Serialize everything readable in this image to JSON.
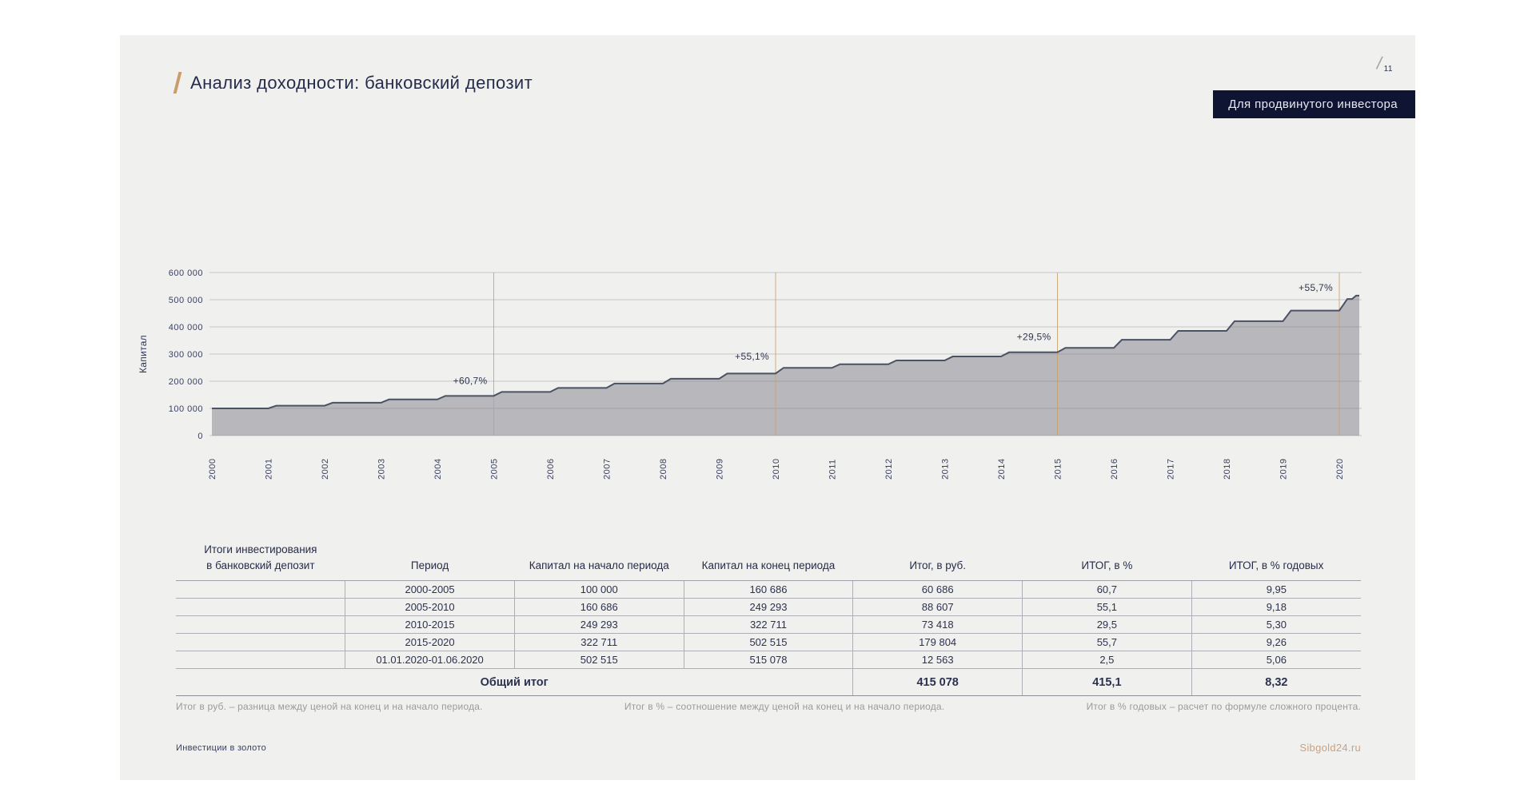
{
  "page": {
    "number": "11"
  },
  "header": {
    "title": "Анализ доходности: банковский депозит",
    "badge": "Для продвинутого инвестора"
  },
  "chart_data": {
    "type": "area",
    "title": "",
    "xlabel": "",
    "ylabel": "Капитал",
    "ylim": [
      0,
      600000
    ],
    "yticks": [
      0,
      100000,
      200000,
      300000,
      400000,
      500000,
      600000
    ],
    "ytick_labels": [
      "0",
      "100 000",
      "200 000",
      "300 000",
      "400 000",
      "500 000",
      "600 000"
    ],
    "years": [
      2000,
      2001,
      2002,
      2003,
      2004,
      2005,
      2006,
      2007,
      2008,
      2009,
      2010,
      2011,
      2012,
      2013,
      2014,
      2015,
      2016,
      2017,
      2018,
      2019,
      2020
    ],
    "values": [
      100000,
      109950,
      120886,
      132911,
      146130,
      160686,
      175437,
      191541,
      209123,
      228321,
      249293,
      262496,
      276398,
      291036,
      306449,
      322711,
      352601,
      385260,
      420944,
      459933,
      502515
    ],
    "end_value": 515078,
    "markers": [
      {
        "year": 2005,
        "label": "+60,7%"
      },
      {
        "year": 2010,
        "label": "+55,1%"
      },
      {
        "year": 2015,
        "label": "+29,5%"
      },
      {
        "year": 2020,
        "label": "+55,7%"
      }
    ],
    "grid": true,
    "legend": false,
    "colors": {
      "fill": "#b3b3b7",
      "line": "#4a5264",
      "marker_line": "#c9a06c",
      "grid": "#6e6e78",
      "axis_text": "#3a4060",
      "annotation_text": "#2e3450"
    }
  },
  "table": {
    "headers": [
      "Итоги инвестирования\nв банковский депозит",
      "Период",
      "Капитал на начало периода",
      "Капитал на конец периода",
      "Итог, в руб.",
      "ИТОГ, в %",
      "ИТОГ, в % годовых"
    ],
    "rows": [
      [
        "2000-2005",
        "100 000",
        "160 686",
        "60 686",
        "60,7",
        "9,95"
      ],
      [
        "2005-2010",
        "160 686",
        "249 293",
        "88 607",
        "55,1",
        "9,18"
      ],
      [
        "2010-2015",
        "249 293",
        "322 711",
        "73 418",
        "29,5",
        "5,30"
      ],
      [
        "2015-2020",
        "322 711",
        "502 515",
        "179 804",
        "55,7",
        "9,26"
      ],
      [
        "01.01.2020-01.06.2020",
        "502 515",
        "515 078",
        "12 563",
        "2,5",
        "5,06"
      ]
    ],
    "total": {
      "label": "Общий итог",
      "rub": "415 078",
      "pct": "415,1",
      "annual": "8,32"
    }
  },
  "footnotes": [
    "Итог в руб. – разница между ценой на конец и на начало периода.",
    "Итог в % – соотношение между ценой на конец и на начало периода.",
    "Итог в % годовых – расчет по формуле сложного процента."
  ],
  "footer": {
    "left": "Инвестиции в золото",
    "right": "Sibgold24.ru"
  }
}
